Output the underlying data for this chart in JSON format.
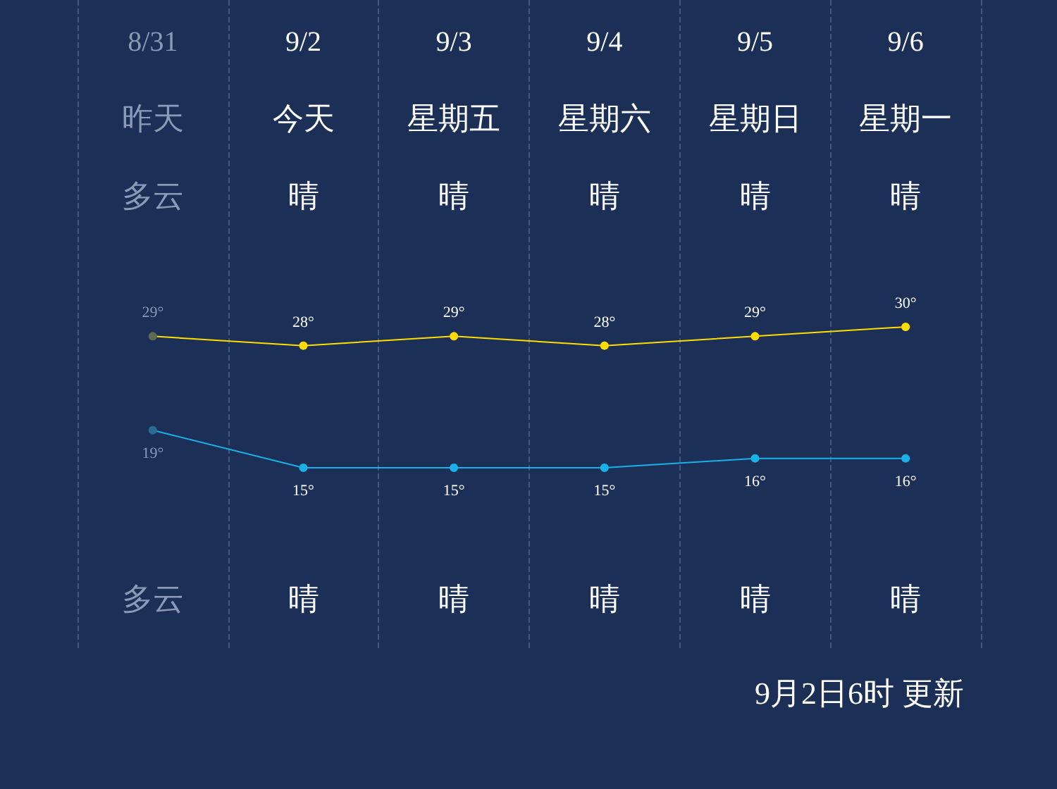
{
  "chart_data": {
    "type": "line",
    "categories": [
      "8/31",
      "9/2",
      "9/3",
      "9/4",
      "9/5",
      "9/6"
    ],
    "series": [
      {
        "color": "#ffdd00",
        "colors": [
          "#5d6b4e",
          "#ffdd00",
          "#ffdd00",
          "#ffdd00",
          "#ffdd00",
          "#ffdd00"
        ],
        "values": [
          29,
          28,
          29,
          28,
          29,
          30
        ],
        "value_labels": [
          "29°",
          "28°",
          "29°",
          "28°",
          "29°",
          "30°"
        ]
      },
      {
        "color": "#1ab0e8",
        "colors": [
          "#2a6a93",
          "#1ab0e8",
          "#1ab0e8",
          "#1ab0e8",
          "#1ab0e8",
          "#1ab0e8"
        ],
        "values": [
          19,
          15,
          15,
          15,
          16,
          16
        ],
        "value_labels": [
          "19°",
          "15°",
          "15°",
          "15°",
          "16°",
          "16°"
        ]
      }
    ],
    "annotations": [
      "昨天",
      "今天",
      "星期五",
      "星期六",
      "星期日",
      "星期一",
      "多云",
      "晴",
      "晴",
      "晴",
      "晴",
      "晴",
      "多云",
      "晴",
      "晴",
      "晴",
      "晴",
      "晴",
      "9月2日6时 更新"
    ],
    "marker": "circle",
    "grid": "x"
  }
}
